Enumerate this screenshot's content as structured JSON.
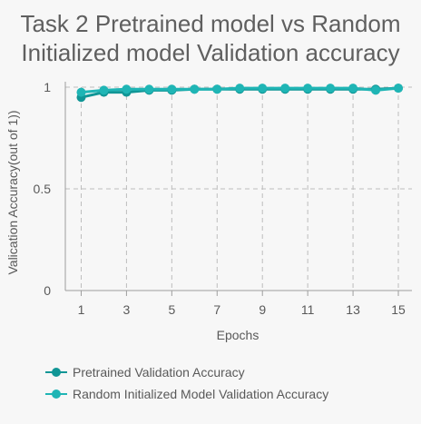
{
  "chart_data": {
    "type": "line",
    "title_lines": [
      "Task 2 Pretrained model vs Random",
      "Initialized model Validation accuracy"
    ],
    "xlabel": "Epochs",
    "ylabel": "Valication Accuracy(out of 1))",
    "x": [
      1,
      2,
      3,
      4,
      5,
      6,
      7,
      8,
      9,
      10,
      11,
      12,
      13,
      14,
      15
    ],
    "x_tick_labels": [
      "1",
      "3",
      "5",
      "7",
      "9",
      "11",
      "13",
      "15"
    ],
    "y_tick_labels": [
      "0",
      "0.5",
      "1"
    ],
    "ylim": [
      0,
      1
    ],
    "grid": true,
    "legend_position": "bottom",
    "series": [
      {
        "name": "Pretrained Validation Accuracy",
        "color": "#119696",
        "values": [
          0.95,
          0.975,
          0.975,
          0.985,
          0.985,
          0.99,
          0.99,
          0.99,
          0.99,
          0.99,
          0.99,
          0.99,
          0.99,
          0.99,
          0.995
        ]
      },
      {
        "name": "Random Initialized Model Validation Accuracy",
        "color": "#1fb5b5",
        "values": [
          0.975,
          0.985,
          0.99,
          0.99,
          0.99,
          0.99,
          0.99,
          0.995,
          0.995,
          0.995,
          0.995,
          0.995,
          0.995,
          0.985,
          0.995
        ]
      }
    ]
  }
}
